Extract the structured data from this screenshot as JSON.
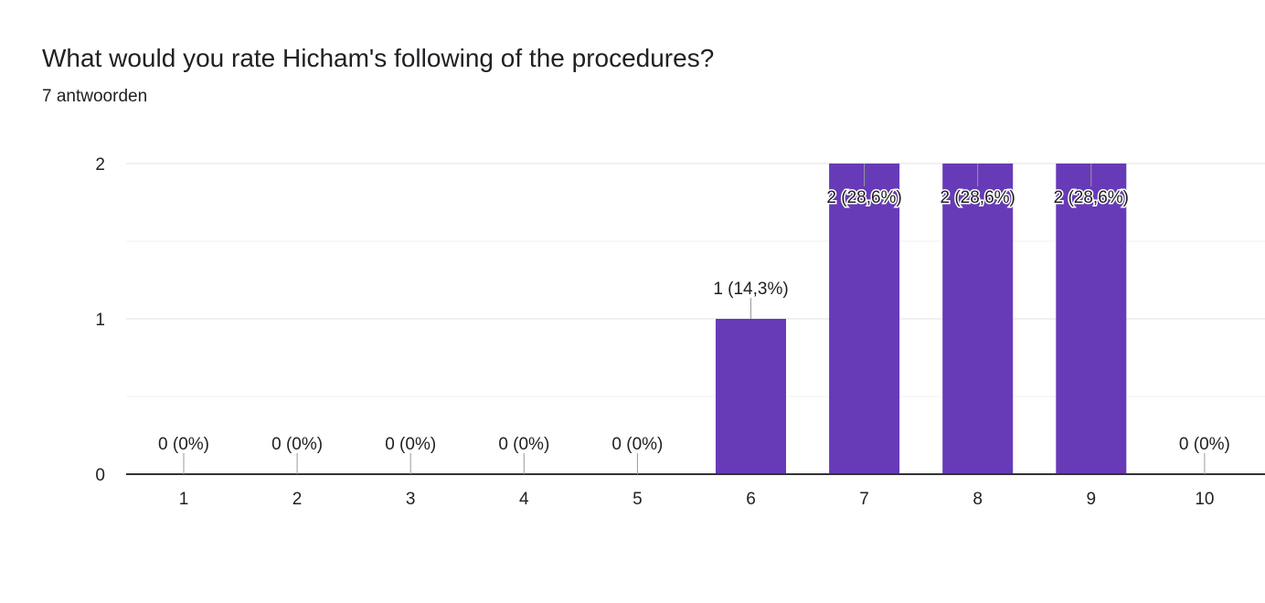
{
  "header": {
    "question": "What would you rate Hicham's following of the procedures?",
    "response_count": "7 antwoorden"
  },
  "colors": {
    "bar": "#673ab7",
    "grid": "#e8e8e8",
    "axis": "#333333",
    "leader": "#999999",
    "text": "#202124"
  },
  "chart_data": {
    "type": "bar",
    "title": "What would you rate Hicham's following of the procedures?",
    "categories": [
      "1",
      "2",
      "3",
      "4",
      "5",
      "6",
      "7",
      "8",
      "9",
      "10"
    ],
    "values": [
      0,
      0,
      0,
      0,
      0,
      1,
      2,
      2,
      2,
      0
    ],
    "data_labels": [
      "0 (0%)",
      "0 (0%)",
      "0 (0%)",
      "0 (0%)",
      "0 (0%)",
      "1 (14,3%)",
      "2 (28,6%)",
      "2 (28,6%)",
      "2 (28,6%)",
      "0 (0%)"
    ],
    "ylim": [
      0,
      2
    ],
    "y_ticks": [
      "0",
      "1",
      "2"
    ],
    "grid": true,
    "legend": "none"
  }
}
